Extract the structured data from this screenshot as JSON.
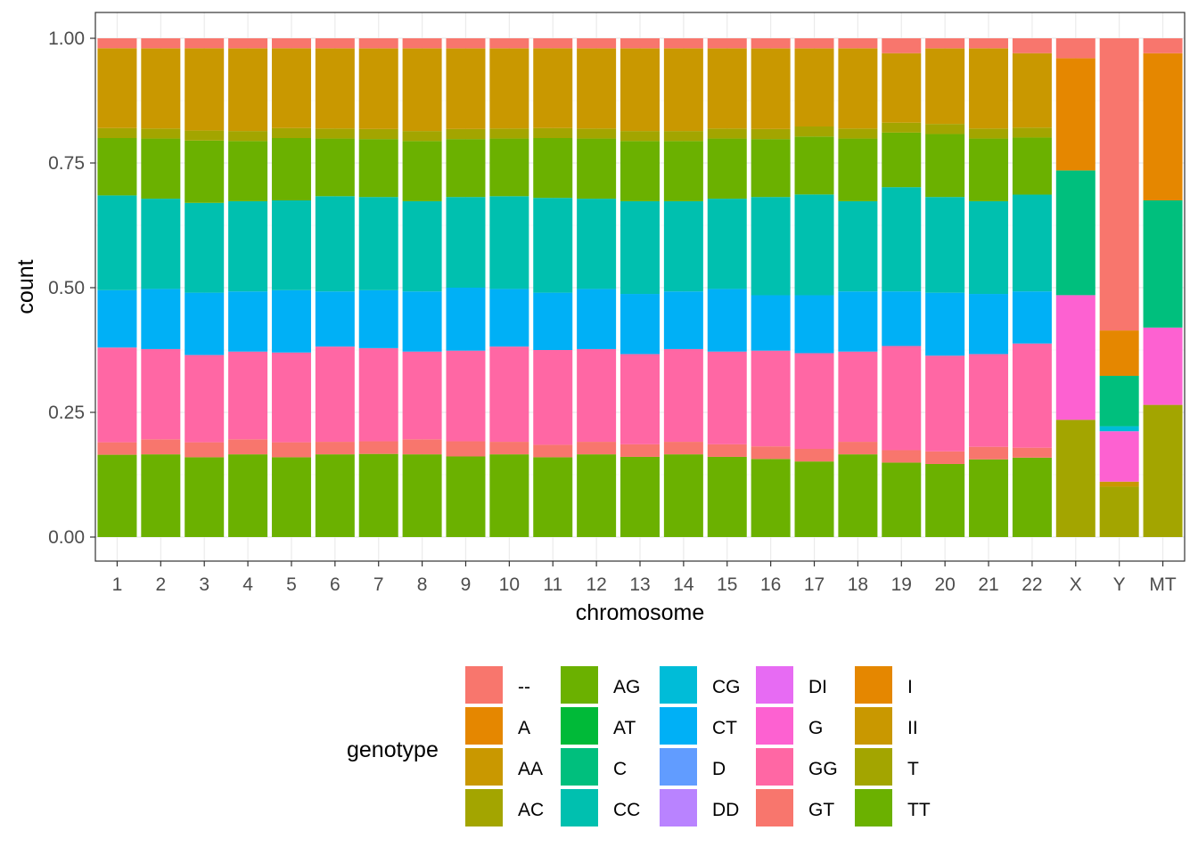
{
  "chart_data": {
    "type": "bar",
    "stacked": "fill",
    "xlabel": "chromosome",
    "ylabel": "count",
    "ylim": [
      0,
      1
    ],
    "yticks": [
      "0.00",
      "0.25",
      "0.50",
      "0.75",
      "1.00"
    ],
    "ytick_values": [
      0,
      0.25,
      0.5,
      0.75,
      1.0
    ],
    "categories": [
      "1",
      "2",
      "3",
      "4",
      "5",
      "6",
      "7",
      "8",
      "9",
      "10",
      "11",
      "12",
      "13",
      "14",
      "15",
      "16",
      "17",
      "18",
      "19",
      "20",
      "21",
      "22",
      "X",
      "Y",
      "MT"
    ],
    "legend": {
      "title": "genotype",
      "placement": "bottom"
    },
    "series": [
      {
        "name": "--",
        "color": "#F8766D",
        "values": [
          0.02,
          0.02,
          0.02,
          0.02,
          0.02,
          0.02,
          0.02,
          0.02,
          0.02,
          0.02,
          0.02,
          0.02,
          0.02,
          0.02,
          0.02,
          0.02,
          0.02,
          0.02,
          0.03,
          0.02,
          0.02,
          0.03,
          0.04,
          0.58,
          0.03
        ]
      },
      {
        "name": "A",
        "color": "#E58700",
        "values": [
          0,
          0,
          0,
          0,
          0,
          0,
          0,
          0,
          0,
          0,
          0,
          0,
          0,
          0,
          0,
          0,
          0,
          0,
          0,
          0,
          0,
          0,
          0.225,
          0.09,
          0.295
        ]
      },
      {
        "name": "AA",
        "color": "#C99800",
        "values": [
          0.16,
          0.16,
          0.165,
          0.165,
          0.16,
          0.16,
          0.16,
          0.165,
          0.16,
          0.16,
          0.16,
          0.16,
          0.165,
          0.165,
          0.16,
          0.16,
          0.155,
          0.16,
          0.14,
          0.15,
          0.16,
          0.15,
          0,
          0,
          0
        ]
      },
      {
        "name": "AC",
        "color": "#A3A500",
        "values": [
          0.02,
          0.02,
          0.02,
          0.02,
          0.02,
          0.02,
          0.02,
          0.02,
          0.02,
          0.02,
          0.02,
          0.02,
          0.02,
          0.02,
          0.02,
          0.02,
          0.02,
          0.02,
          0.02,
          0.02,
          0.02,
          0.02,
          0,
          0,
          0
        ]
      },
      {
        "name": "AG",
        "color": "#6BB100",
        "values": [
          0.115,
          0.12,
          0.125,
          0.12,
          0.125,
          0.115,
          0.115,
          0.12,
          0.115,
          0.115,
          0.12,
          0.12,
          0.12,
          0.12,
          0.12,
          0.115,
          0.115,
          0.125,
          0.11,
          0.125,
          0.125,
          0.115,
          0,
          0,
          0
        ]
      },
      {
        "name": "AT",
        "color": "#00BA38",
        "values": [
          0,
          0,
          0,
          0,
          0,
          0,
          0,
          0,
          0,
          0,
          0,
          0,
          0,
          0,
          0,
          0,
          0,
          0,
          0,
          0,
          0,
          0,
          0,
          0,
          0
        ]
      },
      {
        "name": "C",
        "color": "#00BF7D",
        "values": [
          0,
          0,
          0,
          0,
          0,
          0,
          0,
          0,
          0,
          0,
          0,
          0,
          0,
          0,
          0,
          0,
          0,
          0,
          0,
          0,
          0,
          0,
          0.25,
          0.1,
          0.255
        ]
      },
      {
        "name": "CC",
        "color": "#00C0AF",
        "values": [
          0.19,
          0.18,
          0.18,
          0.18,
          0.18,
          0.19,
          0.185,
          0.18,
          0.18,
          0.185,
          0.19,
          0.18,
          0.185,
          0.18,
          0.18,
          0.195,
          0.2,
          0.18,
          0.21,
          0.19,
          0.185,
          0.195,
          0,
          0,
          0
        ]
      },
      {
        "name": "CG",
        "color": "#00BCD8",
        "values": [
          0,
          0,
          0,
          0,
          0,
          0,
          0,
          0,
          0,
          0,
          0,
          0,
          0,
          0,
          0,
          0,
          0,
          0,
          0,
          0,
          0,
          0,
          0,
          0.01,
          0
        ]
      },
      {
        "name": "CT",
        "color": "#00B0F6",
        "values": [
          0.115,
          0.12,
          0.125,
          0.12,
          0.125,
          0.11,
          0.115,
          0.12,
          0.125,
          0.115,
          0.115,
          0.12,
          0.12,
          0.115,
          0.125,
          0.11,
          0.115,
          0.12,
          0.11,
          0.125,
          0.12,
          0.105,
          0,
          0,
          0
        ]
      },
      {
        "name": "D",
        "color": "#619CFF",
        "values": [
          0,
          0,
          0,
          0,
          0,
          0,
          0,
          0,
          0,
          0,
          0,
          0,
          0,
          0,
          0,
          0,
          0,
          0,
          0,
          0,
          0,
          0,
          0,
          0,
          0
        ]
      },
      {
        "name": "DD",
        "color": "#B983FF",
        "values": [
          0,
          0,
          0,
          0,
          0,
          0,
          0,
          0,
          0,
          0,
          0,
          0,
          0,
          0,
          0,
          0,
          0,
          0,
          0,
          0,
          0,
          0,
          0,
          0,
          0
        ]
      },
      {
        "name": "DI",
        "color": "#E76BF3",
        "values": [
          0,
          0,
          0,
          0,
          0,
          0,
          0,
          0,
          0,
          0,
          0,
          0,
          0,
          0,
          0,
          0,
          0,
          0,
          0,
          0,
          0,
          0,
          0,
          0,
          0
        ]
      },
      {
        "name": "G",
        "color": "#FD61D1",
        "values": [
          0,
          0,
          0,
          0,
          0,
          0,
          0,
          0,
          0,
          0,
          0,
          0,
          0,
          0,
          0,
          0,
          0,
          0,
          0,
          0,
          0,
          0,
          0.25,
          0.1,
          0.155
        ]
      },
      {
        "name": "GG",
        "color": "#FF67A4",
        "values": [
          0.19,
          0.18,
          0.175,
          0.175,
          0.18,
          0.19,
          0.185,
          0.175,
          0.18,
          0.19,
          0.19,
          0.185,
          0.18,
          0.185,
          0.185,
          0.19,
          0.19,
          0.18,
          0.21,
          0.19,
          0.185,
          0.21,
          0,
          0,
          0
        ]
      },
      {
        "name": "GT",
        "color": "#F8766D",
        "values": [
          0.025,
          0.03,
          0.03,
          0.03,
          0.03,
          0.025,
          0.025,
          0.03,
          0.03,
          0.025,
          0.025,
          0.025,
          0.025,
          0.025,
          0.025,
          0.025,
          0.025,
          0.025,
          0.025,
          0.025,
          0.025,
          0.02,
          0,
          0,
          0
        ]
      },
      {
        "name": "I",
        "color": "#E58700",
        "values": [
          0,
          0,
          0,
          0,
          0,
          0,
          0,
          0,
          0,
          0,
          0,
          0,
          0,
          0,
          0,
          0,
          0,
          0,
          0,
          0,
          0,
          0,
          0,
          0,
          0
        ]
      },
      {
        "name": "II",
        "color": "#C99800",
        "values": [
          0,
          0,
          0,
          0,
          0,
          0,
          0,
          0,
          0,
          0,
          0,
          0,
          0,
          0,
          0,
          0,
          0,
          0,
          0,
          0,
          0,
          0,
          0,
          0.01,
          0
        ]
      },
      {
        "name": "T",
        "color": "#A3A500",
        "values": [
          0,
          0,
          0,
          0,
          0,
          0,
          0,
          0,
          0,
          0,
          0,
          0,
          0,
          0,
          0,
          0,
          0,
          0,
          0,
          0,
          0,
          0,
          0.235,
          0.1,
          0.265
        ]
      },
      {
        "name": "TT",
        "color": "#6BB100",
        "values": [
          0.165,
          0.165,
          0.16,
          0.165,
          0.16,
          0.165,
          0.165,
          0.165,
          0.16,
          0.165,
          0.16,
          0.165,
          0.16,
          0.165,
          0.16,
          0.155,
          0.15,
          0.165,
          0.15,
          0.145,
          0.155,
          0.16,
          0,
          0,
          0
        ]
      }
    ]
  }
}
